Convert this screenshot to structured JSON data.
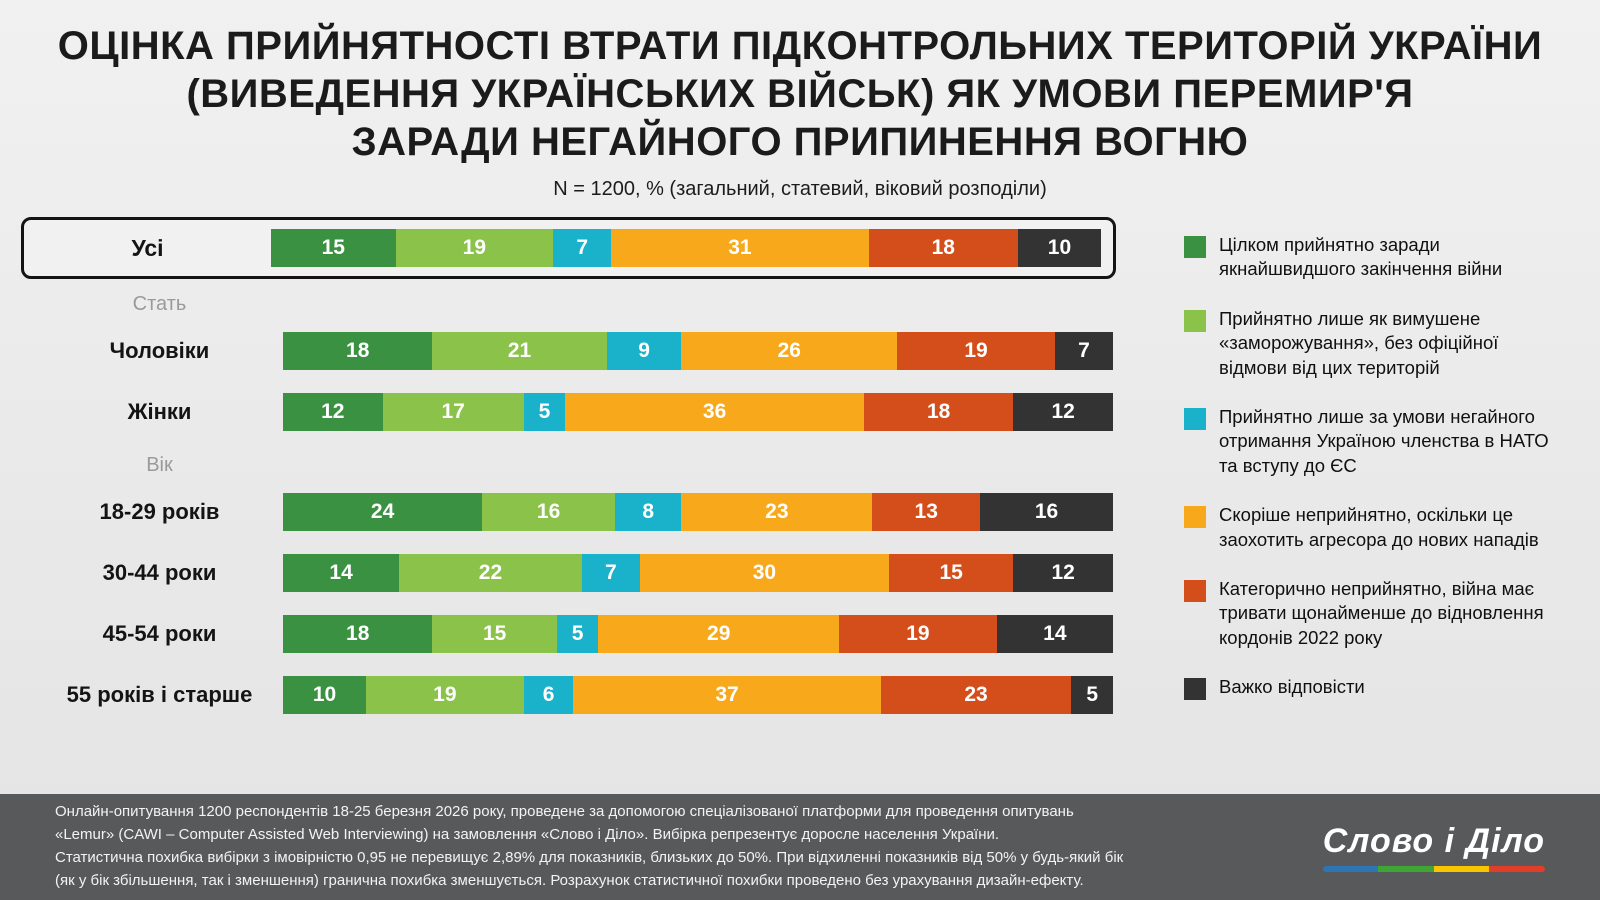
{
  "title_lines": [
    "ОЦІНКА ПРИЙНЯТНОСТІ ВТРАТИ ПІДКОНТРОЛЬНИХ ТЕРИТОРІЙ УКРАЇНИ",
    "(ВИВЕДЕННЯ УКРАЇНСЬКИХ ВІЙСЬК) ЯК УМОВИ ПЕРЕМИР'Я",
    "ЗАРАДИ НЕГАЙНОГО ПРИПИНЕННЯ ВОГНЮ"
  ],
  "subtitle": "N = 1200, % (загальний, статевий, віковий розподіли)",
  "chart_data": {
    "type": "bar",
    "variant": "horizontal-stacked",
    "unit": "%",
    "xlim": [
      0,
      100
    ],
    "legend_position": "right",
    "series": [
      {
        "name": "Цілком прийнятно заради якнайшвидшого закінчення війни",
        "color": "#3a9142"
      },
      {
        "name": "Прийнятно лише як вимушене «заморожування», без офіційної відмови від цих територій",
        "color": "#8bc24a"
      },
      {
        "name": "Прийнятно лише за умови негайного отримання Україною членства в НАТО та вступу до ЄС",
        "color": "#19b2ca"
      },
      {
        "name": "Скоріше неприйнятно, оскільки це заохотить агресора до нових нападів",
        "color": "#f8a81b"
      },
      {
        "name": "Категорично неприйнятно, війна має тривати щонайменше до відновлення кордонів 2022 року",
        "color": "#d44e1c"
      },
      {
        "name": "Важко відповісти",
        "color": "#333333"
      }
    ],
    "groups": [
      {
        "section": "",
        "rows": [
          {
            "label": "Усі",
            "values": [
              15,
              19,
              7,
              31,
              18,
              10
            ],
            "highlighted": true
          }
        ]
      },
      {
        "section": "Стать",
        "rows": [
          {
            "label": "Чоловіки",
            "values": [
              18,
              21,
              9,
              26,
              19,
              7
            ]
          },
          {
            "label": "Жінки",
            "values": [
              12,
              17,
              5,
              36,
              18,
              12
            ]
          }
        ]
      },
      {
        "section": "Вік",
        "rows": [
          {
            "label": "18-29 років",
            "values": [
              24,
              16,
              8,
              23,
              13,
              16
            ]
          },
          {
            "label": "30-44 роки",
            "values": [
              14,
              22,
              7,
              30,
              15,
              12
            ]
          },
          {
            "label": "45-54 роки",
            "values": [
              18,
              15,
              5,
              29,
              19,
              14
            ]
          },
          {
            "label": "55 років і старше",
            "values": [
              10,
              19,
              6,
              37,
              23,
              5
            ]
          }
        ]
      }
    ]
  },
  "footer": {
    "lines": [
      "Онлайн-опитування 1200 респондентів 18-25 березня 2026 року, проведене за допомогою спеціалізованої платформи для проведення опитувань",
      "«Lemur» (CAWI – Computer Assisted Web Interviewing) на замовлення «Слово і Діло». Вибірка репрезентує доросле населення України.",
      "Статистична похибка вибірки з імовірністю 0,95 не перевищує 2,89% для показників, близьких до 50%. При відхиленні показників від 50% у будь-який бік",
      "(як у бік збільшення, так і зменшення) гранична похибка зменшується. Розрахунок статистичної похибки проведено без урахування дизайн-ефекту."
    ],
    "logo_text": "Слово і Діло",
    "logo_colors": [
      "#2e75b6",
      "#3fa535",
      "#f7c600",
      "#e23d28"
    ]
  }
}
